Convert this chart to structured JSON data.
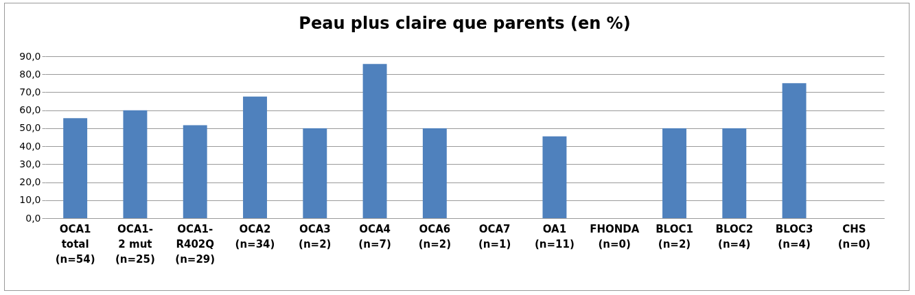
{
  "chart_data": {
    "type": "bar",
    "title": "Peau plus claire que parents (en %)",
    "categories": [
      "OCA1\ntotal\n(n=54)",
      "OCA1-\n2 mut\n(n=25)",
      "OCA1-\nR402Q\n(n=29)",
      "OCA2\n(n=34)",
      "OCA3\n(n=2)",
      "OCA4\n(n=7)",
      "OCA6\n(n=2)",
      "OCA7\n(n=1)",
      "OA1\n(n=11)",
      "FHONDA\n(n=0)",
      "BLOC1\n(n=2)",
      "BLOC2\n(n=4)",
      "BLOC3\n(n=4)",
      "CHS\n(n=0)"
    ],
    "values": [
      55.6,
      60.0,
      51.7,
      67.6,
      50.0,
      85.7,
      50.0,
      0,
      45.5,
      null,
      50.0,
      50.0,
      75.0,
      null
    ],
    "color": "#4f81bd",
    "ylim": [
      0,
      90
    ],
    "yticks": [
      {
        "value": 0,
        "label": "0,0"
      },
      {
        "value": 10,
        "label": "10,0"
      },
      {
        "value": 20,
        "label": "20,0"
      },
      {
        "value": 30,
        "label": "30,0"
      },
      {
        "value": 40,
        "label": "40,0"
      },
      {
        "value": 50,
        "label": "50,0"
      },
      {
        "value": 60,
        "label": "60,0"
      },
      {
        "value": 70,
        "label": "70,0"
      },
      {
        "value": 80,
        "label": "80,0"
      },
      {
        "value": 90,
        "label": "90,0"
      }
    ],
    "grid": "y"
  }
}
